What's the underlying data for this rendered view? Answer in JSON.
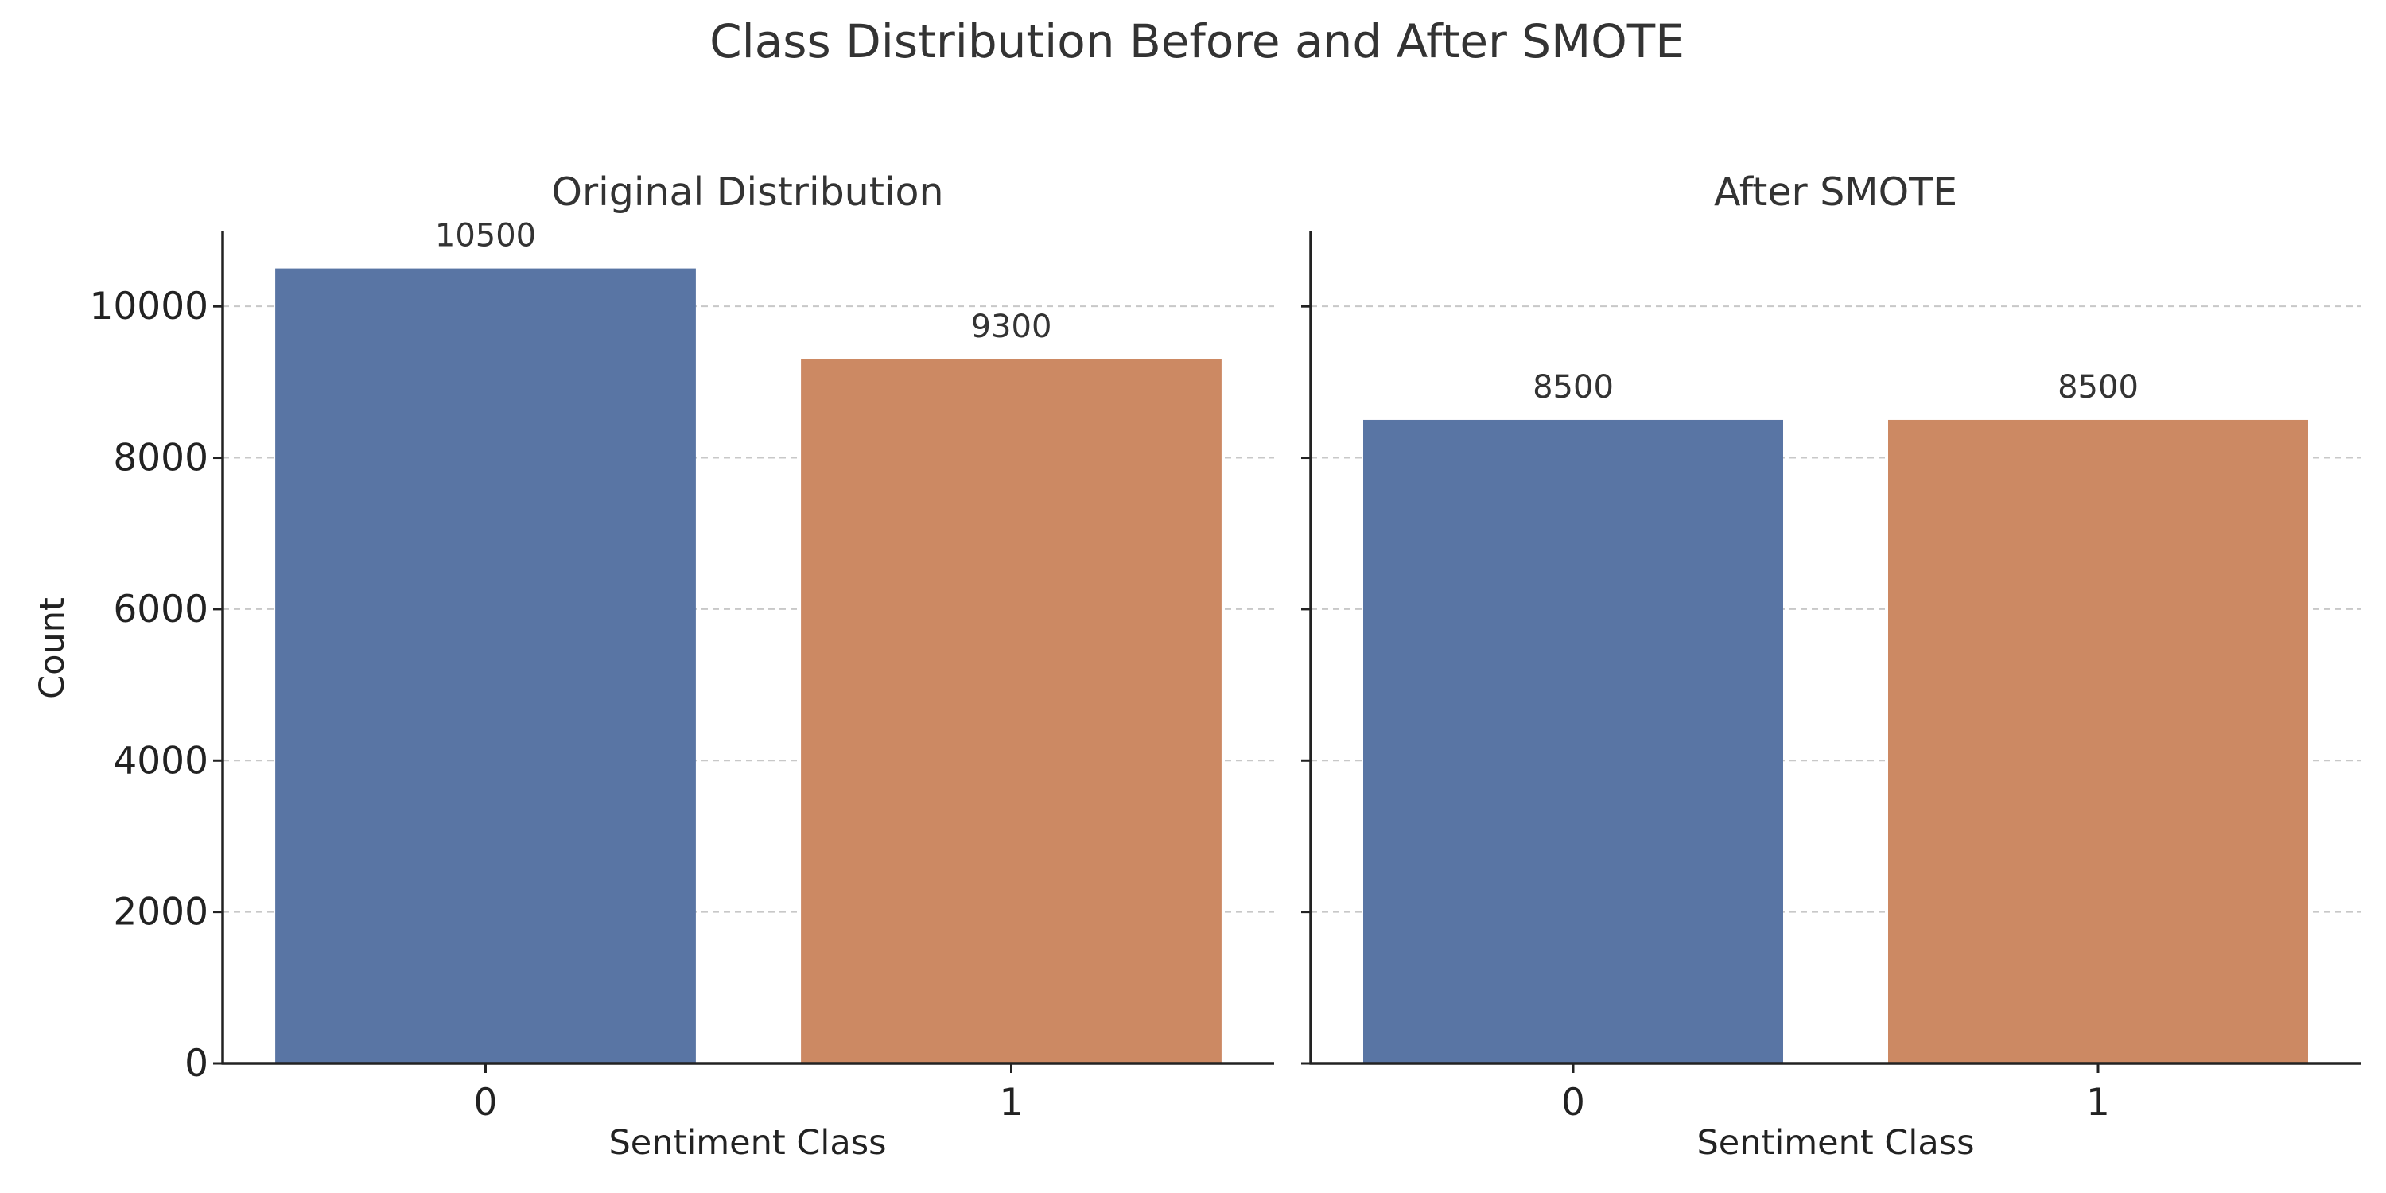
{
  "chart_data": {
    "title": "Class Distribution Before and After SMOTE",
    "colors": [
      "#5975a4",
      "#cc8963"
    ],
    "panels": [
      {
        "type": "bar",
        "title": "Original Distribution",
        "xlabel": "Sentiment Class",
        "ylabel": "Count",
        "categories": [
          "0",
          "1"
        ],
        "values": [
          10500,
          9300
        ],
        "data_labels": [
          "10500",
          "9300"
        ],
        "yticks": [
          0,
          2000,
          4000,
          6000,
          8000,
          10000
        ],
        "ylim": [
          0,
          11000
        ],
        "grid": true
      },
      {
        "type": "bar",
        "title": "After SMOTE",
        "xlabel": "Sentiment Class",
        "ylabel": "",
        "categories": [
          "0",
          "1"
        ],
        "values": [
          8500,
          8500
        ],
        "data_labels": [
          "8500",
          "8500"
        ],
        "yticks": [
          0,
          2000,
          4000,
          6000,
          8000,
          10000
        ],
        "ylim": [
          0,
          11000
        ],
        "grid": true,
        "shared_y": true
      }
    ]
  }
}
